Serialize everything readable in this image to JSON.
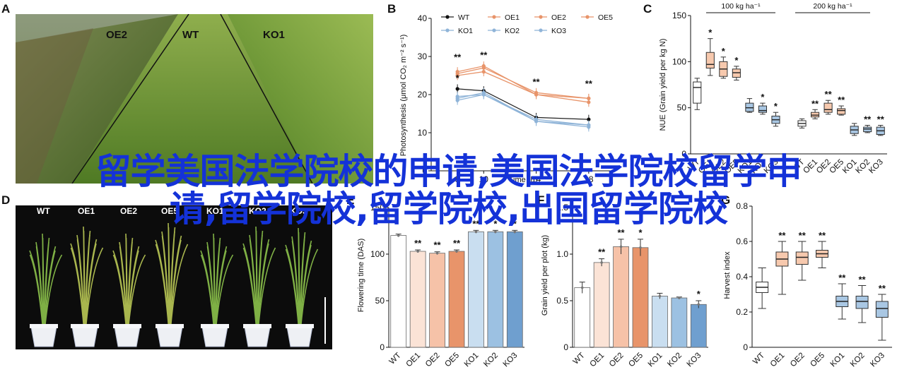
{
  "panels": {
    "A": {
      "letter": "A",
      "labels": [
        "OE2",
        "WT",
        "KO1"
      ]
    },
    "B": {
      "letter": "B"
    },
    "C": {
      "letter": "C"
    },
    "D": {
      "letter": "D",
      "labels": [
        "WT",
        "OE1",
        "OE2",
        "OE5",
        "KO1",
        "KO2",
        "KO3"
      ]
    },
    "E": {
      "letter": "E"
    },
    "F": {
      "letter": "F"
    },
    "G": {
      "letter": "G"
    }
  },
  "overlay": {
    "line1": "留学美国法学院校的申请,美国法学院校留学申",
    "line2": "请,留学院校,留学院校,出国留学院校"
  },
  "colors": {
    "overlay": "#1432d8",
    "wt": "#222222",
    "oe": "#e8946a",
    "ko": "#8fb4d8"
  },
  "chart_data": [
    {
      "id": "B",
      "type": "line",
      "ylabel": "Photosynthesis (μmol CO₂ m⁻² s⁻¹)",
      "xlabel": "Time (h)",
      "ylim": [
        0,
        40
      ],
      "yticks": [
        0,
        10,
        20,
        30,
        40
      ],
      "x": [
        8,
        10,
        14,
        18
      ],
      "series": [
        {
          "name": "WT",
          "group": "wt",
          "marker": "circle",
          "values": [
            21.5,
            21,
            14,
            13.5
          ]
        },
        {
          "name": "OE1",
          "group": "oe",
          "marker": "circle",
          "values": [
            25,
            26,
            20,
            18
          ]
        },
        {
          "name": "OE2",
          "group": "oe",
          "marker": "square",
          "values": [
            25.5,
            27,
            20.5,
            19
          ]
        },
        {
          "name": "OE5",
          "group": "oe",
          "marker": "diamond",
          "values": [
            26,
            27.5,
            20,
            19
          ]
        },
        {
          "name": "KO1",
          "group": "ko",
          "marker": "triangle",
          "values": [
            19,
            20.5,
            13,
            12
          ]
        },
        {
          "name": "KO2",
          "group": "ko",
          "marker": "down",
          "values": [
            19.5,
            20,
            13.5,
            12
          ]
        },
        {
          "name": "KO3",
          "group": "ko",
          "marker": "circle",
          "values": [
            18.5,
            20,
            13,
            11.5
          ]
        }
      ],
      "annotations": [
        {
          "x": 8,
          "y": 29,
          "text": "**"
        },
        {
          "x": 8,
          "y": 23.5,
          "text": "*"
        },
        {
          "x": 10,
          "y": 29.5,
          "text": "**"
        },
        {
          "x": 14,
          "y": 22.5,
          "text": "**"
        },
        {
          "x": 18,
          "y": 22,
          "text": "**"
        }
      ]
    },
    {
      "id": "C",
      "type": "box",
      "ylabel": "NUE (Grain yield per kg N)",
      "ylim": [
        0,
        150
      ],
      "yticks": [
        0,
        50,
        100,
        150
      ],
      "groups": [
        "100 kg ha⁻¹",
        "200 kg ha⁻¹"
      ],
      "categories": [
        "WT",
        "OE1",
        "OE2",
        "OE5",
        "KO1",
        "KO2",
        "KO3",
        "WT",
        "OE1",
        "OE2",
        "OE5",
        "KO1",
        "KO2",
        "KO3"
      ],
      "boxes": [
        {
          "cat": "WT",
          "g": "wt",
          "min": 48,
          "q1": 55,
          "med": 72,
          "q3": 78,
          "max": 82,
          "sig": ""
        },
        {
          "cat": "OE1",
          "g": "oe",
          "min": 85,
          "q1": 93,
          "med": 97,
          "q3": 110,
          "max": 125,
          "sig": "*"
        },
        {
          "cat": "OE2",
          "g": "oe",
          "min": 82,
          "q1": 84,
          "med": 92,
          "q3": 100,
          "max": 105,
          "sig": "*"
        },
        {
          "cat": "OE5",
          "g": "oe",
          "min": 80,
          "q1": 83,
          "med": 88,
          "q3": 92,
          "max": 95,
          "sig": "*"
        },
        {
          "cat": "KO1",
          "g": "ko",
          "min": 45,
          "q1": 46,
          "med": 50,
          "q3": 55,
          "max": 60,
          "sig": ""
        },
        {
          "cat": "KO2",
          "g": "ko",
          "min": 43,
          "q1": 45,
          "med": 47,
          "q3": 52,
          "max": 55,
          "sig": "*"
        },
        {
          "cat": "KO3",
          "g": "ko",
          "min": 30,
          "q1": 33,
          "med": 37,
          "q3": 41,
          "max": 45,
          "sig": "*"
        },
        {
          "cat": "WT",
          "g": "wt",
          "min": 28,
          "q1": 30,
          "med": 33,
          "q3": 36,
          "max": 38,
          "sig": ""
        },
        {
          "cat": "OE1",
          "g": "oe",
          "min": 38,
          "q1": 40,
          "med": 42,
          "q3": 45,
          "max": 48,
          "sig": "**"
        },
        {
          "cat": "OE2",
          "g": "oe",
          "min": 43,
          "q1": 45,
          "med": 48,
          "q3": 55,
          "max": 58,
          "sig": "**"
        },
        {
          "cat": "OE5",
          "g": "oe",
          "min": 42,
          "q1": 43,
          "med": 47,
          "q3": 49,
          "max": 52,
          "sig": "**"
        },
        {
          "cat": "KO1",
          "g": "ko",
          "min": 20,
          "q1": 22,
          "med": 26,
          "q3": 30,
          "max": 33,
          "sig": ""
        },
        {
          "cat": "KO2",
          "g": "ko",
          "min": 23,
          "q1": 24,
          "med": 27,
          "q3": 29,
          "max": 31,
          "sig": "**"
        },
        {
          "cat": "KO3",
          "g": "ko",
          "min": 20,
          "q1": 21,
          "med": 25,
          "q3": 29,
          "max": 31,
          "sig": "**"
        }
      ]
    },
    {
      "id": "E",
      "type": "bar",
      "ylabel": "Flowering time (DAS)",
      "ylim": [
        0,
        150
      ],
      "yticks": [
        0,
        50,
        100,
        150
      ],
      "categories": [
        "WT",
        "OE1",
        "OE2",
        "OE5",
        "KO1",
        "KO2",
        "KO3"
      ],
      "values": [
        120,
        103,
        101,
        103,
        124,
        124,
        124
      ],
      "groups": [
        "wt",
        "oe",
        "oe",
        "oe",
        "ko",
        "ko",
        "ko"
      ],
      "shades": [
        "#ffffff",
        "#fbe3d6",
        "#f6c2a8",
        "#e8946a",
        "#c9def0",
        "#9cc1e2",
        "#6f9fcf"
      ],
      "sig": [
        "",
        "**",
        "**",
        "**",
        "**",
        "*",
        "*"
      ]
    },
    {
      "id": "F",
      "type": "bar",
      "ylabel": "Grain yield per plot (kg)",
      "ylim": [
        0,
        1.5
      ],
      "yticks": [
        0,
        0.5,
        1.0,
        1.5
      ],
      "categories": [
        "WT",
        "OE1",
        "OE2",
        "OE5",
        "KO1",
        "KO2",
        "KO3"
      ],
      "values": [
        0.64,
        0.91,
        1.08,
        1.07,
        0.55,
        0.53,
        0.46
      ],
      "err": [
        0.06,
        0.04,
        0.08,
        0.09,
        0.03,
        0.01,
        0.04
      ],
      "groups": [
        "wt",
        "oe",
        "oe",
        "oe",
        "ko",
        "ko",
        "ko"
      ],
      "shades": [
        "#ffffff",
        "#fbe3d6",
        "#f6c2a8",
        "#e8946a",
        "#c9def0",
        "#9cc1e2",
        "#6f9fcf"
      ],
      "sig": [
        "",
        "**",
        "**",
        "*",
        "",
        "",
        "*"
      ]
    },
    {
      "id": "G",
      "type": "box",
      "ylabel": "Harvest index",
      "ylim": [
        0,
        0.8
      ],
      "yticks": [
        0,
        0.2,
        0.4,
        0.6,
        0.8
      ],
      "categories": [
        "WT",
        "OE1",
        "OE2",
        "OE5",
        "KO1",
        "KO2",
        "KO3"
      ],
      "boxes": [
        {
          "cat": "WT",
          "g": "wt",
          "min": 0.22,
          "q1": 0.31,
          "med": 0.34,
          "q3": 0.37,
          "max": 0.45,
          "sig": ""
        },
        {
          "cat": "OE1",
          "g": "oe",
          "min": 0.3,
          "q1": 0.46,
          "med": 0.5,
          "q3": 0.54,
          "max": 0.6,
          "sig": "**"
        },
        {
          "cat": "OE2",
          "g": "oe",
          "min": 0.38,
          "q1": 0.47,
          "med": 0.51,
          "q3": 0.54,
          "max": 0.6,
          "sig": "**"
        },
        {
          "cat": "OE5",
          "g": "oe",
          "min": 0.45,
          "q1": 0.51,
          "med": 0.53,
          "q3": 0.55,
          "max": 0.6,
          "sig": "**"
        },
        {
          "cat": "KO1",
          "g": "ko",
          "min": 0.16,
          "q1": 0.23,
          "med": 0.26,
          "q3": 0.29,
          "max": 0.36,
          "sig": "**"
        },
        {
          "cat": "KO2",
          "g": "ko",
          "min": 0.14,
          "q1": 0.22,
          "med": 0.26,
          "q3": 0.29,
          "max": 0.35,
          "sig": "**"
        },
        {
          "cat": "KO3",
          "g": "ko",
          "min": 0.04,
          "q1": 0.17,
          "med": 0.22,
          "q3": 0.26,
          "max": 0.3,
          "sig": "**"
        }
      ]
    }
  ]
}
